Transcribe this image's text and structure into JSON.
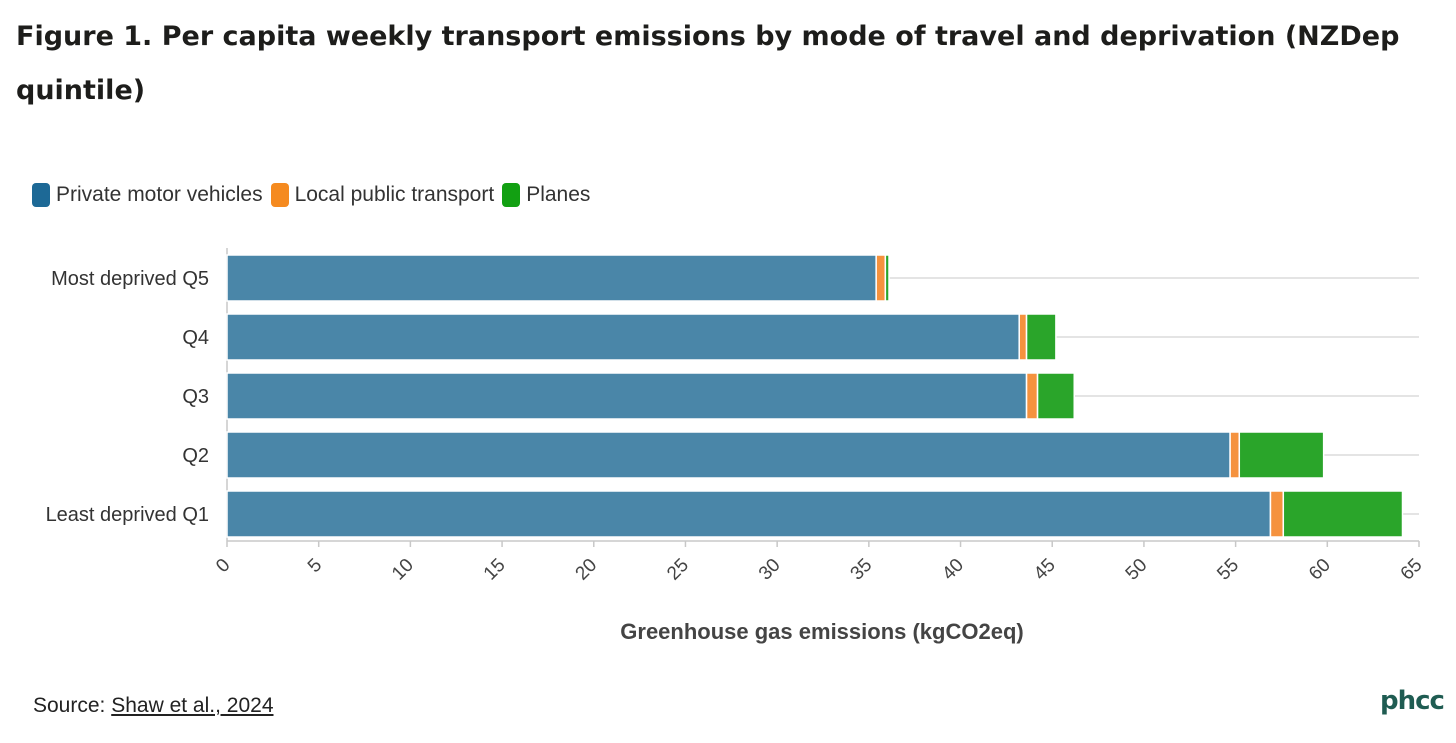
{
  "title": "Figure 1. Per capita weekly transport emissions by mode of travel and deprivation (NZDep quintile)",
  "source": {
    "prefix": "Source:",
    "link_text": "Shaw et al., 2024"
  },
  "logo": {
    "text": "phcc"
  },
  "colors": {
    "private": "#4a86a8",
    "public": "#f5923e",
    "planes": "#2aa52a",
    "grid": "#e4e4e4",
    "axis": "#c8c8c8"
  },
  "legend": [
    {
      "label": "Private motor vehicles",
      "color": "#1d6996"
    },
    {
      "label": "Local public transport",
      "color": "#f58a1f"
    },
    {
      "label": "Planes",
      "color": "#12a012"
    }
  ],
  "chart_data": {
    "type": "bar",
    "orientation": "horizontal",
    "stacked": true,
    "categories": [
      "Most deprived Q5",
      "Q4",
      "Q3",
      "Q2",
      "Least deprived Q1"
    ],
    "series": [
      {
        "name": "Private motor vehicles",
        "values": [
          35.4,
          43.2,
          43.6,
          54.7,
          56.9
        ]
      },
      {
        "name": "Local public transport",
        "values": [
          0.5,
          0.4,
          0.6,
          0.5,
          0.7
        ]
      },
      {
        "name": "Planes",
        "values": [
          0.2,
          1.6,
          2.0,
          4.6,
          6.5
        ]
      }
    ],
    "xlabel": "Greenhouse gas emissions (kgCO2eq)",
    "ylabel": "",
    "xlim": [
      0,
      65
    ],
    "xticks": [
      0,
      5,
      10,
      15,
      20,
      25,
      30,
      35,
      40,
      45,
      50,
      55,
      60,
      65
    ],
    "grid": true,
    "legend_position": "top-left"
  }
}
